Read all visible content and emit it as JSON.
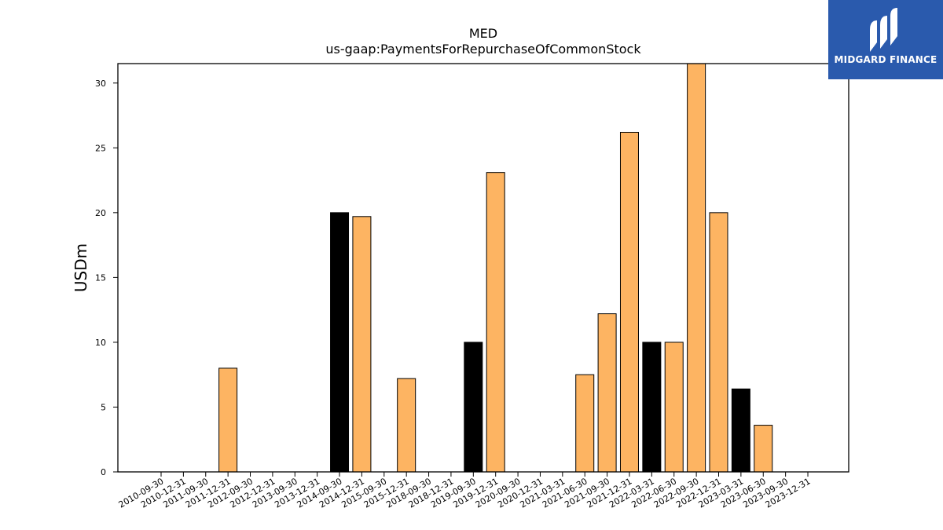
{
  "chart_data": {
    "type": "bar",
    "title": "MED",
    "subtitle": "us-gaap:PaymentsForRepurchaseOfCommonStock",
    "xlabel": "",
    "ylabel": "USDm",
    "ylim": [
      0,
      31.5
    ],
    "yticks": [
      0,
      5,
      10,
      15,
      20,
      25,
      30
    ],
    "grid": false,
    "categories": [
      "2010-09-30",
      "2010-12-31",
      "2011-09-30",
      "2011-12-31",
      "2012-09-30",
      "2012-12-31",
      "2013-09-30",
      "2013-12-31",
      "2014-09-30",
      "2014-12-31",
      "2015-09-30",
      "2015-12-31",
      "2018-09-30",
      "2018-12-31",
      "2019-09-30",
      "2019-12-31",
      "2020-09-30",
      "2020-12-31",
      "2021-03-31",
      "2021-06-30",
      "2021-09-30",
      "2021-12-31",
      "2022-03-31",
      "2022-06-30",
      "2022-09-30",
      "2022-12-31",
      "2023-03-31",
      "2023-06-30",
      "2023-09-30",
      "2023-12-31"
    ],
    "bars": [
      {
        "x": "2011-12-31",
        "value": 8.0,
        "color": "#fdb462"
      },
      {
        "x": "2014-09-30",
        "value": 20.0,
        "color": "#000000"
      },
      {
        "x": "2014-12-31",
        "value": 19.7,
        "color": "#fdb462"
      },
      {
        "x": "2015-12-31",
        "value": 7.2,
        "color": "#fdb462"
      },
      {
        "x": "2019-09-30",
        "value": 10.0,
        "color": "#000000"
      },
      {
        "x": "2019-12-31",
        "value": 23.1,
        "color": "#fdb462"
      },
      {
        "x": "2021-06-30",
        "value": 7.5,
        "color": "#fdb462"
      },
      {
        "x": "2021-09-30",
        "value": 12.2,
        "color": "#fdb462"
      },
      {
        "x": "2021-12-31",
        "value": 26.2,
        "color": "#fdb462"
      },
      {
        "x": "2022-03-31",
        "value": 10.0,
        "color": "#000000"
      },
      {
        "x": "2022-06-30",
        "value": 10.0,
        "color": "#fdb462"
      },
      {
        "x": "2022-09-30",
        "value": 31.6,
        "color": "#fdb462"
      },
      {
        "x": "2022-12-31",
        "value": 20.0,
        "color": "#fdb462"
      },
      {
        "x": "2023-03-31",
        "value": 6.4,
        "color": "#000000"
      },
      {
        "x": "2023-06-30",
        "value": 3.6,
        "color": "#fdb462"
      }
    ]
  },
  "logo": {
    "text": "MIDGARD FINANCE",
    "background": "#2a5aad",
    "icon": "midgard-logo-icon"
  }
}
